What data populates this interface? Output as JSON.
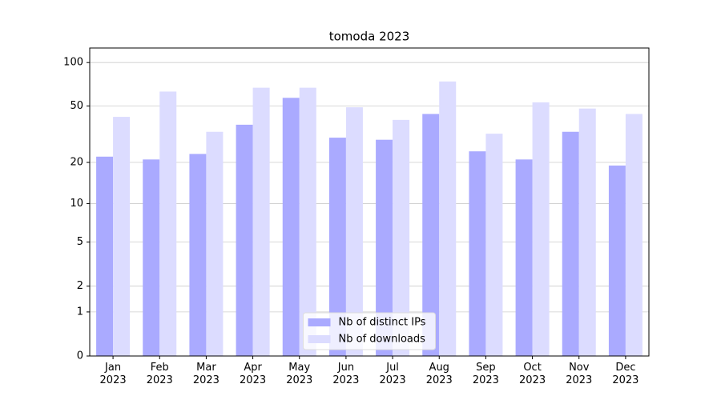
{
  "chart_data": {
    "type": "bar",
    "title": "tomoda 2023",
    "categories": [
      "Jan\n2023",
      "Feb\n2023",
      "Mar\n2023",
      "Apr\n2023",
      "May\n2023",
      "Jun\n2023",
      "Jul\n2023",
      "Aug\n2023",
      "Sep\n2023",
      "Oct\n2023",
      "Nov\n2023",
      "Dec\n2023"
    ],
    "series": [
      {
        "name": "Nb of distinct IPs",
        "color": "#aaaaff",
        "values": [
          22,
          21,
          23,
          37,
          57,
          30,
          29,
          44,
          24,
          21,
          33,
          19
        ]
      },
      {
        "name": "Nb of downloads",
        "color": "#dcdcff",
        "values": [
          42,
          63,
          33,
          67,
          67,
          49,
          40,
          74,
          32,
          53,
          48,
          44
        ]
      }
    ],
    "yscale": "log1p",
    "ylim": [
      0,
      126
    ],
    "yticks": [
      0,
      1,
      2,
      5,
      10,
      20,
      50,
      100
    ],
    "grid": true,
    "legend": "lower center"
  }
}
